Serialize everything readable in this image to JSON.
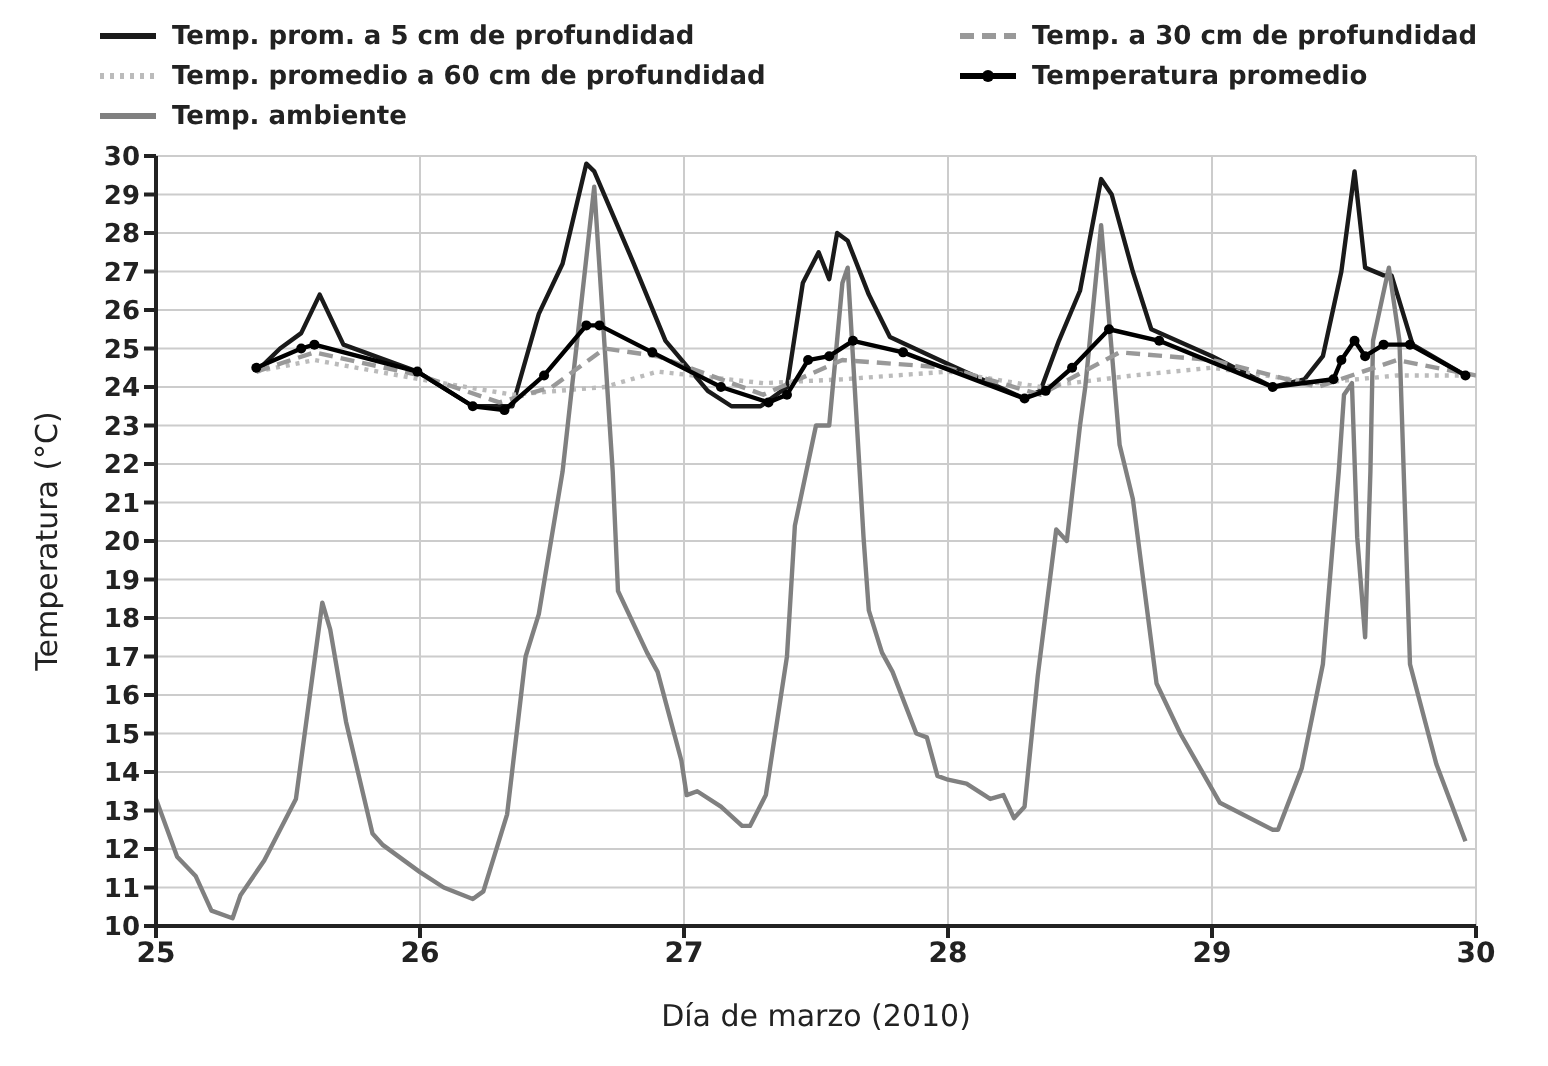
{
  "chart_data": {
    "type": "line",
    "xlabel": "Día de marzo (2010)",
    "ylabel": "Temperatura (°C)",
    "xlim": [
      25,
      30
    ],
    "xticks": [
      25,
      26,
      27,
      28,
      29,
      30
    ],
    "ylim": [
      10,
      30
    ],
    "yticks": [
      10,
      11,
      12,
      13,
      14,
      15,
      16,
      17,
      18,
      19,
      20,
      21,
      22,
      23,
      24,
      25,
      26,
      27,
      28,
      29,
      30
    ],
    "grid": true,
    "legend": "top",
    "marker": "none",
    "line_style": "solid",
    "series": [
      {
        "name": "Temp. prom. a 5 cm de profundidad",
        "color": "#1a1a1a",
        "x": [
          25.38,
          25.47,
          25.55,
          25.62,
          25.71,
          25.99,
          26.2,
          26.27,
          26.35,
          26.45,
          26.54,
          26.63,
          26.66,
          26.81,
          26.93,
          27.09,
          27.18,
          27.29,
          27.39,
          27.45,
          27.51,
          27.55,
          27.58,
          27.62,
          27.7,
          27.78,
          28.0,
          28.29,
          28.35,
          28.42,
          28.5,
          28.58,
          28.62,
          28.7,
          28.77,
          29.0,
          29.23,
          29.35,
          29.42,
          29.49,
          29.54,
          29.58,
          29.65,
          29.68,
          29.76,
          29.96
        ],
        "values": [
          24.4,
          25.0,
          25.4,
          26.4,
          25.1,
          24.4,
          23.5,
          23.5,
          23.5,
          25.9,
          27.2,
          29.8,
          29.6,
          27.2,
          25.2,
          23.9,
          23.5,
          23.5,
          24.0,
          26.7,
          27.5,
          26.8,
          28.0,
          27.8,
          26.4,
          25.3,
          24.6,
          23.7,
          23.9,
          25.2,
          26.5,
          29.4,
          29.0,
          27.0,
          25.5,
          24.8,
          24.0,
          24.2,
          24.8,
          27.0,
          29.6,
          27.1,
          26.9,
          26.9,
          25.1,
          24.3
        ]
      },
      {
        "name": "Temp. promedio a 60 cm de profundidad",
        "color": "#bbbbbb",
        "line_style": "dotted",
        "x": [
          25.38,
          25.6,
          26.0,
          26.35,
          26.7,
          26.9,
          27.3,
          27.6,
          28.0,
          28.35,
          28.7,
          29.0,
          29.4,
          29.7,
          30.0
        ],
        "values": [
          24.4,
          24.7,
          24.2,
          23.8,
          24.0,
          24.4,
          24.1,
          24.2,
          24.4,
          24.0,
          24.3,
          24.5,
          24.1,
          24.3,
          24.3
        ]
      },
      {
        "name": "Temp. ambiente",
        "color": "#808080",
        "x": [
          25.0,
          25.08,
          25.15,
          25.21,
          25.29,
          25.32,
          25.41,
          25.53,
          25.63,
          25.66,
          25.72,
          25.82,
          25.86,
          26.0,
          26.09,
          26.2,
          26.24,
          26.33,
          26.4,
          26.45,
          26.54,
          26.66,
          26.73,
          26.75,
          26.86,
          26.9,
          26.99,
          27.01,
          27.05,
          27.14,
          27.22,
          27.25,
          27.31,
          27.39,
          27.42,
          27.5,
          27.55,
          27.6,
          27.62,
          27.68,
          27.7,
          27.75,
          27.79,
          27.88,
          27.92,
          27.96,
          28.0,
          28.07,
          28.16,
          28.21,
          28.25,
          28.29,
          28.34,
          28.41,
          28.45,
          28.5,
          28.52,
          28.58,
          28.65,
          28.7,
          28.79,
          28.88,
          29.03,
          29.23,
          29.25,
          29.34,
          29.42,
          29.48,
          29.5,
          29.53,
          29.55,
          29.58,
          29.6,
          29.61,
          29.67,
          29.71,
          29.75,
          29.85,
          29.96
        ],
        "values": [
          13.3,
          11.8,
          11.3,
          10.4,
          10.2,
          10.8,
          11.7,
          13.3,
          18.4,
          17.7,
          15.3,
          12.4,
          12.1,
          11.4,
          11.0,
          10.7,
          10.9,
          12.9,
          17.0,
          18.1,
          21.8,
          29.2,
          21.8,
          18.7,
          17.1,
          16.6,
          14.3,
          13.4,
          13.5,
          13.1,
          12.6,
          12.6,
          13.4,
          17.0,
          20.4,
          23.0,
          23.0,
          26.7,
          27.1,
          20.1,
          18.2,
          17.1,
          16.6,
          15.0,
          14.9,
          13.9,
          13.8,
          13.7,
          13.3,
          13.4,
          12.8,
          13.1,
          16.5,
          20.3,
          20.0,
          23.0,
          24.0,
          28.2,
          22.5,
          21.1,
          16.3,
          15.0,
          13.2,
          12.5,
          12.5,
          14.1,
          16.8,
          21.8,
          23.8,
          24.1,
          20.1,
          17.5,
          21.8,
          25.2,
          27.1,
          25.2,
          16.8,
          14.2,
          12.2
        ]
      },
      {
        "name": "Temp. a 30 cm de profundidad",
        "color": "#999999",
        "line_style": "dashed",
        "x": [
          25.38,
          25.6,
          26.0,
          26.3,
          26.5,
          26.7,
          26.9,
          27.3,
          27.6,
          28.0,
          28.35,
          28.65,
          29.0,
          29.4,
          29.7,
          30.0
        ],
        "values": [
          24.4,
          24.9,
          24.3,
          23.6,
          24.0,
          25.0,
          24.8,
          23.8,
          24.7,
          24.5,
          23.8,
          24.9,
          24.7,
          24.0,
          24.7,
          24.3
        ]
      },
      {
        "name": "Temperatura promedio",
        "color": "#000000",
        "marker": "circle",
        "x": [
          25.38,
          25.55,
          25.6,
          25.99,
          26.2,
          26.32,
          26.47,
          26.63,
          26.68,
          26.88,
          27.14,
          27.32,
          27.39,
          27.47,
          27.55,
          27.64,
          27.83,
          28.29,
          28.37,
          28.47,
          28.61,
          28.8,
          29.23,
          29.46,
          29.49,
          29.54,
          29.58,
          29.65,
          29.75,
          29.96
        ],
        "values": [
          24.5,
          25.0,
          25.1,
          24.4,
          23.5,
          23.4,
          24.3,
          25.6,
          25.6,
          24.9,
          24.0,
          23.6,
          23.8,
          24.7,
          24.8,
          25.2,
          24.9,
          23.7,
          23.9,
          24.5,
          25.5,
          25.2,
          24.0,
          24.2,
          24.7,
          25.2,
          24.8,
          25.1,
          25.1,
          24.3
        ]
      }
    ]
  }
}
